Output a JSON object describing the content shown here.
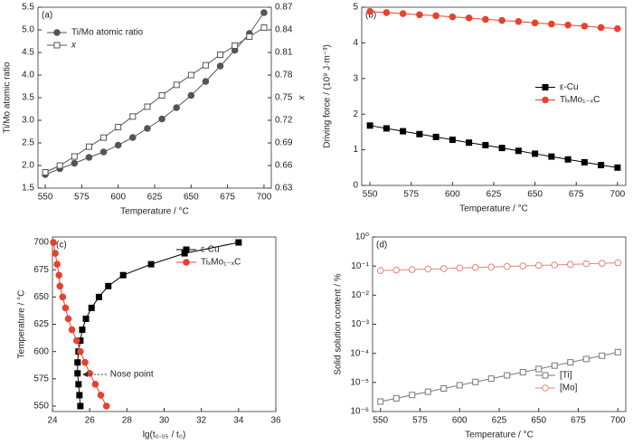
{
  "chart_data": [
    {
      "type": "line",
      "panel": "(a)",
      "x": [
        550,
        560,
        570,
        580,
        590,
        600,
        610,
        620,
        630,
        640,
        650,
        660,
        670,
        680,
        690,
        700
      ],
      "xlim": [
        545,
        705
      ],
      "xticks": [
        550,
        575,
        600,
        625,
        650,
        675,
        700
      ],
      "ylim": [
        1.5,
        5.5
      ],
      "yticks": [
        1.5,
        {
          "value": 2,
          "label": "2.0"
        },
        2.5,
        {
          "value": 3,
          "label": "3.0"
        },
        3.5,
        {
          "value": 4,
          "label": "4.0"
        },
        4.5,
        {
          "value": 5,
          "label": "5.0"
        },
        5.5
      ],
      "y2lim": [
        0.63,
        0.87
      ],
      "y2ticks": [
        0.63,
        0.66,
        0.69,
        0.72,
        0.75,
        0.78,
        0.81,
        0.84,
        0.87
      ],
      "xlabel": "Temperature / °C",
      "ylabel": "Ti/Mo atomic ratio",
      "y2label": "x",
      "legend": "upper left",
      "series": [
        {
          "name": "Ti/Mo atomic ratio",
          "color": "#555555",
          "marker": "circle",
          "filled": true,
          "values": [
            1.8,
            1.93,
            2.05,
            2.18,
            2.3,
            2.45,
            2.62,
            2.82,
            3.03,
            3.28,
            3.55,
            3.86,
            4.2,
            4.55,
            4.92,
            5.38
          ]
        },
        {
          "name": "x",
          "color": "#555555",
          "marker": "square",
          "filled": false,
          "axis": "y2",
          "values": [
            0.651,
            0.66,
            0.672,
            0.685,
            0.697,
            0.711,
            0.725,
            0.738,
            0.753,
            0.767,
            0.78,
            0.793,
            0.807,
            0.819,
            0.831,
            0.843
          ]
        }
      ]
    },
    {
      "type": "line",
      "panel": "(b)",
      "x": [
        550,
        560,
        570,
        580,
        590,
        600,
        610,
        620,
        630,
        640,
        650,
        660,
        670,
        680,
        690,
        700
      ],
      "xlim": [
        545,
        705
      ],
      "xticks": [
        550,
        575,
        600,
        625,
        650,
        675,
        700
      ],
      "ylim": [
        0,
        5
      ],
      "yticks": [
        0,
        1,
        2,
        3,
        4,
        5
      ],
      "xlabel": "Temperature / °C",
      "ylabel": "Driving force / (10⁹ J·m⁻³)",
      "legend": "center right",
      "series": [
        {
          "name": "ε-Cu",
          "color": "#000000",
          "marker": "square",
          "filled": true,
          "values": [
            1.68,
            1.6,
            1.52,
            1.44,
            1.36,
            1.28,
            1.2,
            1.13,
            1.05,
            0.97,
            0.89,
            0.81,
            0.73,
            0.65,
            0.57,
            0.5
          ]
        },
        {
          "name": "TiₓMo₁₋ₓC",
          "color": "#e8412c",
          "marker": "circle",
          "filled": true,
          "values": [
            4.88,
            4.85,
            4.82,
            4.79,
            4.76,
            4.73,
            4.7,
            4.66,
            4.63,
            4.6,
            4.56,
            4.53,
            4.5,
            4.47,
            4.43,
            4.4
          ]
        }
      ]
    },
    {
      "type": "line",
      "panel": "(c)",
      "xlim": [
        24,
        36
      ],
      "xticks": [
        24,
        26,
        28,
        30,
        32,
        34,
        36
      ],
      "ylim": [
        545,
        705
      ],
      "yticks": [
        550,
        575,
        600,
        625,
        650,
        675,
        700
      ],
      "xlabel": "lg(t₀.₀₅ / t₀)",
      "ylabel": "Temperature / °C",
      "annotation": "Nose point",
      "legend": "upper right",
      "series": [
        {
          "name": "ε-Cu",
          "color": "#000000",
          "marker": "square",
          "filled": true,
          "x": [
            25.5,
            25.45,
            25.4,
            25.35,
            25.35,
            25.4,
            25.5,
            25.6,
            25.8,
            26.1,
            26.5,
            27.0,
            27.8,
            29.3,
            31.1,
            34.0
          ],
          "values": [
            550,
            560,
            570,
            580,
            590,
            600,
            610,
            620,
            630,
            640,
            650,
            660,
            670,
            680,
            690,
            700
          ]
        },
        {
          "name": "TiₓMo₁₋ₓC",
          "color": "#e8412c",
          "marker": "circle",
          "filled": true,
          "x": [
            26.9,
            26.6,
            26.3,
            26.0,
            25.75,
            25.5,
            25.3,
            25.05,
            24.85,
            24.7,
            24.55,
            24.4,
            24.35,
            24.25,
            24.15,
            24.05
          ],
          "values": [
            550,
            560,
            570,
            580,
            590,
            600,
            610,
            620,
            630,
            640,
            650,
            660,
            670,
            680,
            690,
            700
          ]
        }
      ]
    },
    {
      "type": "line",
      "panel": "(d)",
      "x": [
        550,
        560,
        570,
        580,
        590,
        600,
        610,
        620,
        630,
        640,
        650,
        660,
        670,
        680,
        690,
        700
      ],
      "xlim": [
        545,
        705
      ],
      "xticks": [
        550,
        575,
        600,
        625,
        650,
        675,
        700
      ],
      "ylog": true,
      "ylim": [
        1e-06,
        1
      ],
      "yticks": [
        {
          "value": 1e-06,
          "label": "10⁻⁶"
        },
        {
          "value": 1e-05,
          "label": "10⁻⁵"
        },
        {
          "value": 0.0001,
          "label": "10⁻⁴"
        },
        {
          "value": 0.001,
          "label": "10⁻³"
        },
        {
          "value": 0.01,
          "label": "10⁻²"
        },
        {
          "value": 0.1,
          "label": "10⁻¹"
        },
        {
          "value": 1,
          "label": "10⁰"
        }
      ],
      "xlabel": "Temperature / °C",
      "ylabel": "Solid solution content / %",
      "legend": "lower right",
      "series": [
        {
          "name": "[Ti]",
          "color": "#777777",
          "marker": "square",
          "filled": false,
          "values": [
            2.2e-06,
            2.85e-06,
            3.7e-06,
            4.8e-06,
            6.2e-06,
            8e-06,
            1.04e-05,
            1.35e-05,
            1.75e-05,
            2.26e-05,
            2.9e-05,
            3.8e-05,
            4.9e-05,
            6.4e-05,
            8.3e-05,
            0.00011
          ]
        },
        {
          "name": "[Mo]",
          "color": "#e8826e",
          "marker": "circle",
          "filled": false,
          "values": [
            0.07,
            0.073,
            0.076,
            0.079,
            0.082,
            0.086,
            0.089,
            0.093,
            0.097,
            0.101,
            0.105,
            0.109,
            0.114,
            0.119,
            0.124,
            0.13
          ]
        }
      ]
    }
  ]
}
